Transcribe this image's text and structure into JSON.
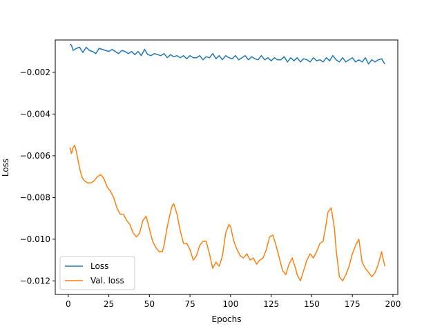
{
  "chart_data": {
    "type": "line",
    "title": "",
    "xlabel": "Epochs",
    "ylabel": "Loss",
    "xlim": [
      -8,
      203
    ],
    "ylim": [
      -0.01265,
      -0.00045
    ],
    "xticks": [
      0,
      25,
      50,
      75,
      100,
      125,
      150,
      175,
      200
    ],
    "xtick_labels": [
      "0",
      "25",
      "50",
      "75",
      "100",
      "125",
      "150",
      "175",
      "200"
    ],
    "yticks": [
      -0.012,
      -0.01,
      -0.008,
      -0.006,
      -0.004,
      -0.002
    ],
    "ytick_labels": [
      "−0.012",
      "−0.010",
      "−0.008",
      "−0.006",
      "−0.004",
      "−0.002"
    ],
    "grid": false,
    "legend_position": "lower-left",
    "series": [
      {
        "name": "Loss",
        "color": "#1f77b4",
        "x": [
          1,
          2,
          3,
          5,
          7,
          9,
          11,
          13,
          15,
          17,
          19,
          21,
          23,
          25,
          27,
          29,
          31,
          33,
          35,
          37,
          39,
          41,
          43,
          45,
          47,
          49,
          51,
          53,
          55,
          57,
          59,
          61,
          63,
          65,
          67,
          69,
          71,
          73,
          75,
          77,
          79,
          81,
          83,
          85,
          87,
          89,
          91,
          93,
          95,
          97,
          99,
          101,
          103,
          105,
          107,
          109,
          111,
          113,
          115,
          117,
          119,
          121,
          123,
          125,
          127,
          129,
          131,
          133,
          135,
          137,
          139,
          141,
          143,
          145,
          147,
          149,
          151,
          153,
          155,
          157,
          159,
          161,
          163,
          165,
          167,
          169,
          171,
          173,
          175,
          177,
          179,
          181,
          183,
          185,
          187,
          189,
          191,
          193,
          195
        ],
        "y": [
          -0.00065,
          -0.0007,
          -0.00095,
          -0.00085,
          -0.0008,
          -0.00105,
          -0.0008,
          -0.00095,
          -0.001,
          -0.0011,
          -0.00085,
          -0.0009,
          -0.00095,
          -0.001,
          -0.0009,
          -0.001,
          -0.0011,
          -0.00095,
          -0.001,
          -0.0011,
          -0.001,
          -0.00115,
          -0.001,
          -0.0012,
          -0.0009,
          -0.00115,
          -0.0012,
          -0.0011,
          -0.00115,
          -0.0012,
          -0.0011,
          -0.0013,
          -0.00115,
          -0.00125,
          -0.0012,
          -0.0013,
          -0.0012,
          -0.00135,
          -0.0012,
          -0.0013,
          -0.0013,
          -0.0012,
          -0.0014,
          -0.00125,
          -0.0013,
          -0.0011,
          -0.00135,
          -0.0012,
          -0.0014,
          -0.0012,
          -0.0013,
          -0.00135,
          -0.0012,
          -0.0014,
          -0.0013,
          -0.0012,
          -0.0014,
          -0.00125,
          -0.00135,
          -0.0014,
          -0.0012,
          -0.0014,
          -0.0013,
          -0.00145,
          -0.0013,
          -0.0014,
          -0.0014,
          -0.00125,
          -0.0015,
          -0.0013,
          -0.00145,
          -0.0013,
          -0.0015,
          -0.00135,
          -0.0014,
          -0.0015,
          -0.0013,
          -0.00145,
          -0.0014,
          -0.0015,
          -0.0013,
          -0.00145,
          -0.0012,
          -0.0014,
          -0.0015,
          -0.0013,
          -0.0015,
          -0.0014,
          -0.0013,
          -0.0015,
          -0.0014,
          -0.0015,
          -0.0013,
          -0.0016,
          -0.0014,
          -0.0015,
          -0.0014,
          -0.00135,
          -0.0016
        ]
      },
      {
        "name": "Val. loss",
        "color": "#ff7f0e",
        "x": [
          1,
          2,
          3,
          4,
          5,
          6,
          7,
          8,
          9,
          10,
          12,
          14,
          16,
          18,
          20,
          22,
          24,
          26,
          28,
          30,
          32,
          34,
          36,
          38,
          40,
          42,
          44,
          46,
          47,
          48,
          50,
          52,
          54,
          56,
          58,
          59,
          61,
          63,
          64,
          65,
          67,
          69,
          71,
          73,
          75,
          77,
          79,
          81,
          83,
          85,
          87,
          89,
          91,
          93,
          95,
          97,
          99,
          100,
          102,
          104,
          106,
          108,
          110,
          112,
          114,
          116,
          118,
          120,
          122,
          124,
          126,
          128,
          130,
          132,
          134,
          136,
          138,
          140,
          141,
          143,
          145,
          147,
          149,
          151,
          153,
          155,
          157,
          159,
          160,
          162,
          164,
          165,
          167,
          169,
          171,
          173,
          175,
          177,
          179,
          181,
          183,
          185,
          187,
          189,
          191,
          193,
          195
        ],
        "y": [
          -0.0056,
          -0.0059,
          -0.0056,
          -0.0055,
          -0.0058,
          -0.0062,
          -0.0066,
          -0.0069,
          -0.0071,
          -0.0072,
          -0.0073,
          -0.0073,
          -0.0072,
          -0.007,
          -0.0069,
          -0.0071,
          -0.0075,
          -0.0077,
          -0.008,
          -0.0085,
          -0.0088,
          -0.0088,
          -0.0091,
          -0.0093,
          -0.0097,
          -0.0099,
          -0.0097,
          -0.0091,
          -0.009,
          -0.0089,
          -0.0095,
          -0.0101,
          -0.0104,
          -0.0106,
          -0.0106,
          -0.0103,
          -0.0094,
          -0.0087,
          -0.0084,
          -0.0083,
          -0.0088,
          -0.0096,
          -0.0102,
          -0.0102,
          -0.0105,
          -0.011,
          -0.0108,
          -0.0103,
          -0.0101,
          -0.0101,
          -0.0107,
          -0.0114,
          -0.0111,
          -0.0113,
          -0.0108,
          -0.0097,
          -0.0093,
          -0.0094,
          -0.0101,
          -0.0105,
          -0.0108,
          -0.0109,
          -0.0107,
          -0.011,
          -0.0109,
          -0.0112,
          -0.011,
          -0.0109,
          -0.0105,
          -0.0099,
          -0.0098,
          -0.0103,
          -0.0109,
          -0.0115,
          -0.0117,
          -0.0112,
          -0.0109,
          -0.0114,
          -0.0117,
          -0.012,
          -0.0115,
          -0.011,
          -0.0107,
          -0.0109,
          -0.0106,
          -0.0102,
          -0.0101,
          -0.0092,
          -0.0087,
          -0.0085,
          -0.0095,
          -0.0105,
          -0.0118,
          -0.012,
          -0.0117,
          -0.0113,
          -0.0107,
          -0.0103,
          -0.01,
          -0.0111,
          -0.0114,
          -0.0116,
          -0.0118,
          -0.0116,
          -0.0112,
          -0.0106,
          -0.0113
        ]
      }
    ]
  }
}
